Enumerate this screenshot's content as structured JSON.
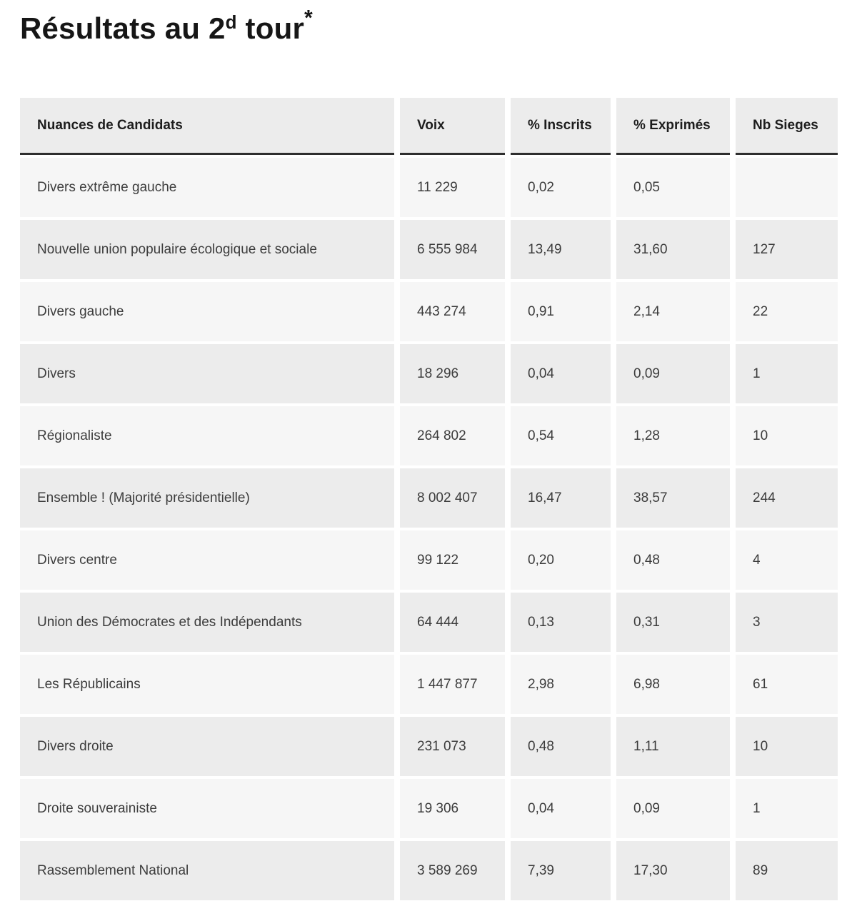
{
  "title": {
    "text": "Résultats au 2",
    "superscript": "d",
    "suffix": " tour",
    "asterisk": "*"
  },
  "table": {
    "columns": [
      "Nuances de Candidats",
      "Voix",
      "% Inscrits",
      "% Exprimés",
      "Nb Sieges"
    ],
    "rows": [
      {
        "nuance": "Divers extrême gauche",
        "voix": "11 229",
        "inscrits": "0,02",
        "exprimes": "0,05",
        "sieges": ""
      },
      {
        "nuance": "Nouvelle union populaire écologique et sociale",
        "voix": "6 555 984",
        "inscrits": "13,49",
        "exprimes": "31,60",
        "sieges": "127"
      },
      {
        "nuance": "Divers gauche",
        "voix": "443 274",
        "inscrits": "0,91",
        "exprimes": "2,14",
        "sieges": "22"
      },
      {
        "nuance": "Divers",
        "voix": "18 296",
        "inscrits": "0,04",
        "exprimes": "0,09",
        "sieges": "1"
      },
      {
        "nuance": "Régionaliste",
        "voix": "264 802",
        "inscrits": "0,54",
        "exprimes": "1,28",
        "sieges": "10"
      },
      {
        "nuance": "Ensemble ! (Majorité présidentielle)",
        "voix": "8 002 407",
        "inscrits": "16,47",
        "exprimes": "38,57",
        "sieges": "244"
      },
      {
        "nuance": "Divers centre",
        "voix": "99 122",
        "inscrits": "0,20",
        "exprimes": "0,48",
        "sieges": "4"
      },
      {
        "nuance": "Union des Démocrates et des Indépendants",
        "voix": "64 444",
        "inscrits": "0,13",
        "exprimes": "0,31",
        "sieges": "3"
      },
      {
        "nuance": "Les Républicains",
        "voix": "1 447 877",
        "inscrits": "2,98",
        "exprimes": "6,98",
        "sieges": "61"
      },
      {
        "nuance": "Divers droite",
        "voix": "231 073",
        "inscrits": "0,48",
        "exprimes": "1,11",
        "sieges": "10"
      },
      {
        "nuance": "Droite souverainiste",
        "voix": "19 306",
        "inscrits": "0,04",
        "exprimes": "0,09",
        "sieges": "1"
      },
      {
        "nuance": "Rassemblement National",
        "voix": "3 589 269",
        "inscrits": "7,39",
        "exprimes": "17,30",
        "sieges": "89"
      }
    ],
    "colors": {
      "header_bg": "#ececec",
      "row_odd_bg": "#f6f6f6",
      "row_even_bg": "#ececec",
      "header_border": "#2e2e2e",
      "header_text": "#1d1d1d",
      "cell_text": "#3c3c3c",
      "title_color": "#161616"
    }
  }
}
